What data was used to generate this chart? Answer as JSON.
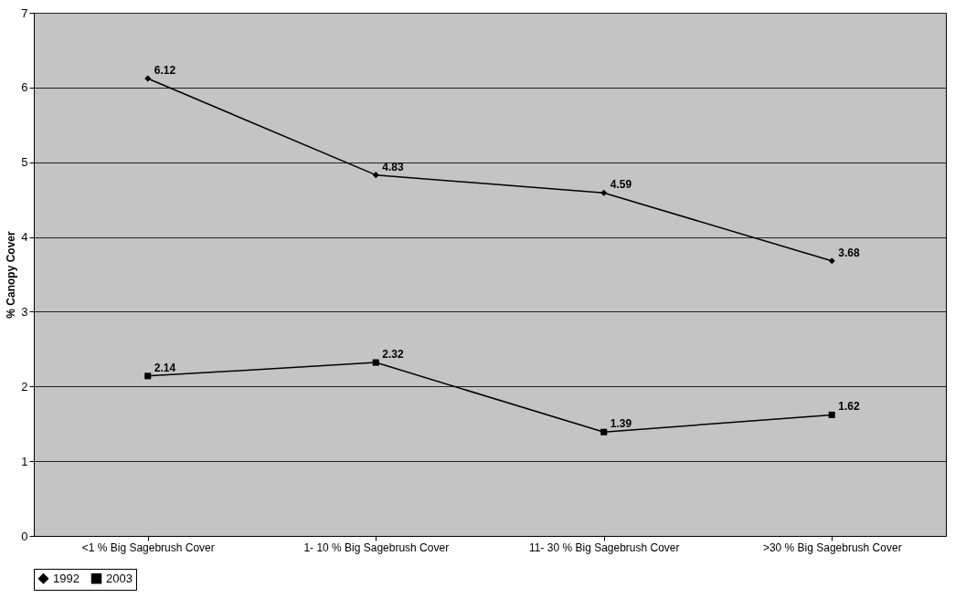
{
  "chart_data": {
    "type": "line",
    "ylabel": "% Canopy Cover",
    "categories": [
      "<1 % Big Sagebrush Cover",
      "1- 10 % Big Sagebrush Cover",
      "11- 30 % Big Sagebrush Cover",
      ">30 % Big Sagebrush Cover"
    ],
    "series": [
      {
        "name": "1992",
        "color": "#000000",
        "marker": "diamond",
        "values": [
          6.12,
          4.83,
          4.59,
          3.68
        ]
      },
      {
        "name": "2003",
        "color": "#000000",
        "marker": "square",
        "values": [
          2.14,
          2.32,
          1.39,
          1.62
        ]
      }
    ],
    "ylim": [
      0,
      7
    ],
    "yticks": [
      0,
      1,
      2,
      3,
      4,
      5,
      6,
      7
    ],
    "grid": "y",
    "legend": "bottom",
    "data_labels": true,
    "line_style": "solid"
  }
}
